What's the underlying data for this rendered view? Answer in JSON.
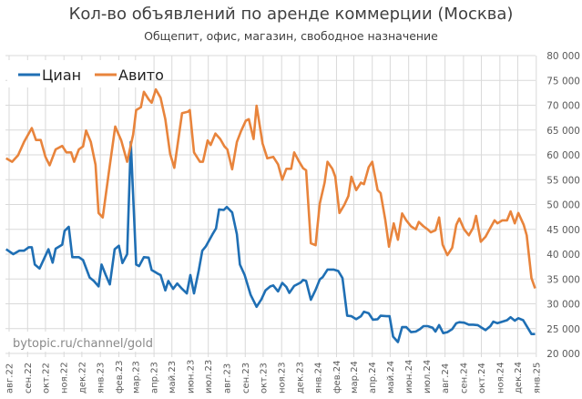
{
  "chart_data": {
    "type": "line",
    "title": "Кол-во объявлений по аренде коммерции (Москва)",
    "subtitle": "Общепит, офис, магазин, свободное назначение",
    "watermark": "bytopic.ru/channel/gold",
    "legend_position": "top-left",
    "grid": true,
    "y_axis_side": "right",
    "ylim": [
      20000,
      80000
    ],
    "y_ticks": [
      20000,
      25000,
      30000,
      35000,
      40000,
      45000,
      50000,
      55000,
      60000,
      65000,
      70000,
      75000,
      80000
    ],
    "y_tick_labels": [
      "20 000",
      "25 000",
      "30 000",
      "35 000",
      "40 000",
      "45 000",
      "50 000",
      "55 000",
      "60 000",
      "65 000",
      "70 000",
      "75 000",
      "80 000"
    ],
    "x_ticks": [
      "2022-08-01",
      "2022-09-01",
      "2022-10-01",
      "2022-11-01",
      "2022-12-01",
      "2023-01-01",
      "2023-02-01",
      "2023-03-01",
      "2023-04-01",
      "2023-05-01",
      "2023-06-01",
      "2023-07-01",
      "2023-08-01",
      "2023-09-01",
      "2023-10-01",
      "2023-11-01",
      "2023-12-01",
      "2024-01-01",
      "2024-02-01",
      "2024-03-01",
      "2024-04-01",
      "2024-05-01",
      "2024-06-01",
      "2024-07-01",
      "2024-08-01",
      "2024-09-01",
      "2024-10-01",
      "2024-11-01",
      "2024-12-01",
      "2025-01-01"
    ],
    "x_tick_labels": [
      "авг.22",
      "сен.22",
      "окт.22",
      "ноя.22",
      "дек.22",
      "янв.23",
      "фев.23",
      "мар.23",
      "апр.23",
      "май.23",
      "июн.23",
      "июл.23",
      "авг.23",
      "сен.23",
      "окт.23",
      "ноя.23",
      "дек.23",
      "янв.24",
      "фев.24",
      "мар.24",
      "апр.24",
      "май.24",
      "июн.24",
      "июл.24",
      "авг.24",
      "сен.24",
      "окт.24",
      "ноя.24",
      "дек.24",
      "янв.25"
    ],
    "series": [
      {
        "name": "Циан",
        "color": "#1f6fb4",
        "points": [
          [
            "2022-07-27",
            41000
          ],
          [
            "2022-08-08",
            40000
          ],
          [
            "2022-08-18",
            40700
          ],
          [
            "2022-08-26",
            40700
          ],
          [
            "2022-09-03",
            41400
          ],
          [
            "2022-09-08",
            41400
          ],
          [
            "2022-09-13",
            37900
          ],
          [
            "2022-09-21",
            37100
          ],
          [
            "2022-10-06",
            41000
          ],
          [
            "2022-10-13",
            38300
          ],
          [
            "2022-10-18",
            41100
          ],
          [
            "2022-10-29",
            41900
          ],
          [
            "2022-11-02",
            44700
          ],
          [
            "2022-11-09",
            45500
          ],
          [
            "2022-11-15",
            39400
          ],
          [
            "2022-11-26",
            39400
          ],
          [
            "2022-12-03",
            38800
          ],
          [
            "2022-12-14",
            35300
          ],
          [
            "2022-12-21",
            34600
          ],
          [
            "2022-12-29",
            33500
          ],
          [
            "2023-01-03",
            37900
          ],
          [
            "2023-01-10",
            35800
          ],
          [
            "2023-01-17",
            33900
          ],
          [
            "2023-01-25",
            41000
          ],
          [
            "2023-02-01",
            41700
          ],
          [
            "2023-02-07",
            38200
          ],
          [
            "2023-02-15",
            40000
          ],
          [
            "2023-02-21",
            62600
          ],
          [
            "2023-03-02",
            37900
          ],
          [
            "2023-03-07",
            37600
          ],
          [
            "2023-03-15",
            39400
          ],
          [
            "2023-03-23",
            39300
          ],
          [
            "2023-03-28",
            36800
          ],
          [
            "2023-04-07",
            36100
          ],
          [
            "2023-04-12",
            35800
          ],
          [
            "2023-04-20",
            32700
          ],
          [
            "2023-04-25",
            34600
          ],
          [
            "2023-05-03",
            33000
          ],
          [
            "2023-05-10",
            34100
          ],
          [
            "2023-05-18",
            33000
          ],
          [
            "2023-05-26",
            32100
          ],
          [
            "2023-06-01",
            35800
          ],
          [
            "2023-06-07",
            32100
          ],
          [
            "2023-06-15",
            36700
          ],
          [
            "2023-06-21",
            40700
          ],
          [
            "2023-06-27",
            41600
          ],
          [
            "2023-07-08",
            44000
          ],
          [
            "2023-07-14",
            45200
          ],
          [
            "2023-07-19",
            49000
          ],
          [
            "2023-07-27",
            48900
          ],
          [
            "2023-08-01",
            49500
          ],
          [
            "2023-08-10",
            48400
          ],
          [
            "2023-08-18",
            44000
          ],
          [
            "2023-08-23",
            37900
          ],
          [
            "2023-08-31",
            35800
          ],
          [
            "2023-09-10",
            31800
          ],
          [
            "2023-09-20",
            29400
          ],
          [
            "2023-09-28",
            30900
          ],
          [
            "2023-10-05",
            32700
          ],
          [
            "2023-10-13",
            33500
          ],
          [
            "2023-10-18",
            33700
          ],
          [
            "2023-10-26",
            32500
          ],
          [
            "2023-11-02",
            34200
          ],
          [
            "2023-11-09",
            33400
          ],
          [
            "2023-11-14",
            32200
          ],
          [
            "2023-11-22",
            33600
          ],
          [
            "2023-12-03",
            34300
          ],
          [
            "2023-12-07",
            34800
          ],
          [
            "2023-12-12",
            34600
          ],
          [
            "2023-12-20",
            30800
          ],
          [
            "2023-12-28",
            32800
          ],
          [
            "2024-01-04",
            34900
          ],
          [
            "2024-01-09",
            35400
          ],
          [
            "2024-01-17",
            36900
          ],
          [
            "2024-01-27",
            36900
          ],
          [
            "2024-02-04",
            36600
          ],
          [
            "2024-02-11",
            35200
          ],
          [
            "2024-02-19",
            27600
          ],
          [
            "2024-02-26",
            27500
          ],
          [
            "2024-03-05",
            26900
          ],
          [
            "2024-03-13",
            27500
          ],
          [
            "2024-03-18",
            28400
          ],
          [
            "2024-03-26",
            28100
          ],
          [
            "2024-04-02",
            26800
          ],
          [
            "2024-04-10",
            26900
          ],
          [
            "2024-04-15",
            27600
          ],
          [
            "2024-04-25",
            27500
          ],
          [
            "2024-04-30",
            27500
          ],
          [
            "2024-05-06",
            23400
          ],
          [
            "2024-05-14",
            22300
          ],
          [
            "2024-05-21",
            25300
          ],
          [
            "2024-05-28",
            25300
          ],
          [
            "2024-06-05",
            24300
          ],
          [
            "2024-06-13",
            24400
          ],
          [
            "2024-06-20",
            24900
          ],
          [
            "2024-06-26",
            25500
          ],
          [
            "2024-07-03",
            25500
          ],
          [
            "2024-07-11",
            25200
          ],
          [
            "2024-07-16",
            24400
          ],
          [
            "2024-07-22",
            25700
          ],
          [
            "2024-07-29",
            24100
          ],
          [
            "2024-08-05",
            24300
          ],
          [
            "2024-08-13",
            24900
          ],
          [
            "2024-08-20",
            26100
          ],
          [
            "2024-08-25",
            26300
          ],
          [
            "2024-09-02",
            26200
          ],
          [
            "2024-09-10",
            25800
          ],
          [
            "2024-09-17",
            25800
          ],
          [
            "2024-09-25",
            25700
          ],
          [
            "2024-09-30",
            25300
          ],
          [
            "2024-10-08",
            24700
          ],
          [
            "2024-10-16",
            25500
          ],
          [
            "2024-10-21",
            26400
          ],
          [
            "2024-10-28",
            26100
          ],
          [
            "2024-11-05",
            26400
          ],
          [
            "2024-11-13",
            26700
          ],
          [
            "2024-11-19",
            27300
          ],
          [
            "2024-11-26",
            26600
          ],
          [
            "2024-12-02",
            27100
          ],
          [
            "2024-12-10",
            26700
          ],
          [
            "2024-12-19",
            24900
          ],
          [
            "2024-12-24",
            23900
          ],
          [
            "2024-12-30",
            23900
          ]
        ]
      },
      {
        "name": "Авито",
        "color": "#e8843c",
        "points": [
          [
            "2022-07-27",
            59300
          ],
          [
            "2022-08-06",
            58600
          ],
          [
            "2022-08-16",
            59900
          ],
          [
            "2022-08-26",
            62600
          ],
          [
            "2022-09-08",
            65400
          ],
          [
            "2022-09-15",
            63000
          ],
          [
            "2022-09-23",
            63000
          ],
          [
            "2022-10-01",
            59600
          ],
          [
            "2022-10-08",
            57900
          ],
          [
            "2022-10-18",
            61100
          ],
          [
            "2022-10-29",
            61800
          ],
          [
            "2022-11-05",
            60500
          ],
          [
            "2022-11-13",
            60500
          ],
          [
            "2022-11-18",
            58600
          ],
          [
            "2022-11-26",
            61100
          ],
          [
            "2022-12-03",
            61700
          ],
          [
            "2022-12-08",
            64900
          ],
          [
            "2022-12-16",
            62600
          ],
          [
            "2022-12-24",
            58000
          ],
          [
            "2022-12-29",
            48300
          ],
          [
            "2023-01-05",
            47400
          ],
          [
            "2023-01-15",
            56200
          ],
          [
            "2023-01-26",
            65700
          ],
          [
            "2023-02-05",
            62900
          ],
          [
            "2023-02-15",
            58600
          ],
          [
            "2023-02-25",
            64100
          ],
          [
            "2023-03-02",
            69000
          ],
          [
            "2023-03-10",
            69600
          ],
          [
            "2023-03-15",
            72700
          ],
          [
            "2023-03-23",
            71200
          ],
          [
            "2023-03-28",
            70500
          ],
          [
            "2023-04-04",
            73200
          ],
          [
            "2023-04-12",
            71500
          ],
          [
            "2023-04-20",
            67200
          ],
          [
            "2023-04-28",
            60200
          ],
          [
            "2023-05-05",
            57400
          ],
          [
            "2023-05-18",
            68400
          ],
          [
            "2023-05-28",
            68700
          ],
          [
            "2023-05-31",
            69000
          ],
          [
            "2023-06-07",
            60500
          ],
          [
            "2023-06-17",
            58600
          ],
          [
            "2023-06-22",
            58600
          ],
          [
            "2023-06-30",
            62900
          ],
          [
            "2023-07-05",
            62000
          ],
          [
            "2023-07-13",
            64300
          ],
          [
            "2023-07-21",
            63200
          ],
          [
            "2023-07-28",
            61700
          ],
          [
            "2023-08-02",
            61100
          ],
          [
            "2023-08-10",
            57100
          ],
          [
            "2023-08-18",
            62600
          ],
          [
            "2023-08-25",
            64800
          ],
          [
            "2023-09-02",
            66900
          ],
          [
            "2023-09-07",
            67200
          ],
          [
            "2023-09-15",
            63200
          ],
          [
            "2023-09-20",
            69900
          ],
          [
            "2023-09-30",
            62300
          ],
          [
            "2023-10-08",
            59300
          ],
          [
            "2023-10-18",
            59600
          ],
          [
            "2023-10-26",
            58100
          ],
          [
            "2023-11-02",
            55000
          ],
          [
            "2023-11-09",
            57200
          ],
          [
            "2023-11-17",
            57200
          ],
          [
            "2023-11-22",
            60500
          ],
          [
            "2023-11-30",
            58700
          ],
          [
            "2023-12-07",
            57300
          ],
          [
            "2023-12-12",
            56900
          ],
          [
            "2023-12-20",
            42200
          ],
          [
            "2023-12-28",
            41800
          ],
          [
            "2024-01-04",
            50200
          ],
          [
            "2024-01-12",
            54400
          ],
          [
            "2024-01-17",
            58600
          ],
          [
            "2024-01-25",
            57200
          ],
          [
            "2024-01-30",
            55600
          ],
          [
            "2024-02-06",
            48300
          ],
          [
            "2024-02-14",
            49900
          ],
          [
            "2024-02-21",
            51700
          ],
          [
            "2024-02-26",
            55600
          ],
          [
            "2024-03-05",
            52900
          ],
          [
            "2024-03-13",
            54400
          ],
          [
            "2024-03-18",
            54100
          ],
          [
            "2024-03-26",
            57500
          ],
          [
            "2024-04-01",
            58600
          ],
          [
            "2024-04-10",
            52900
          ],
          [
            "2024-04-15",
            52300
          ],
          [
            "2024-04-23",
            46800
          ],
          [
            "2024-04-29",
            41500
          ],
          [
            "2024-05-07",
            46200
          ],
          [
            "2024-05-14",
            42900
          ],
          [
            "2024-05-21",
            48200
          ],
          [
            "2024-05-28",
            46800
          ],
          [
            "2024-06-05",
            45600
          ],
          [
            "2024-06-13",
            45000
          ],
          [
            "2024-06-18",
            46500
          ],
          [
            "2024-06-26",
            45600
          ],
          [
            "2024-07-03",
            45000
          ],
          [
            "2024-07-08",
            44400
          ],
          [
            "2024-07-16",
            44800
          ],
          [
            "2024-07-22",
            47400
          ],
          [
            "2024-07-28",
            41900
          ],
          [
            "2024-08-05",
            39800
          ],
          [
            "2024-08-13",
            41300
          ],
          [
            "2024-08-20",
            45900
          ],
          [
            "2024-08-25",
            47200
          ],
          [
            "2024-09-02",
            45000
          ],
          [
            "2024-09-10",
            43800
          ],
          [
            "2024-09-17",
            45300
          ],
          [
            "2024-09-22",
            47700
          ],
          [
            "2024-09-30",
            42500
          ],
          [
            "2024-10-08",
            43500
          ],
          [
            "2024-10-16",
            45300
          ],
          [
            "2024-10-23",
            46800
          ],
          [
            "2024-10-28",
            46200
          ],
          [
            "2024-11-05",
            46800
          ],
          [
            "2024-11-13",
            46800
          ],
          [
            "2024-11-19",
            48600
          ],
          [
            "2024-11-26",
            46200
          ],
          [
            "2024-12-02",
            48300
          ],
          [
            "2024-12-11",
            45900
          ],
          [
            "2024-12-16",
            43800
          ],
          [
            "2024-12-24",
            35200
          ],
          [
            "2024-12-30",
            33100
          ]
        ]
      }
    ]
  }
}
